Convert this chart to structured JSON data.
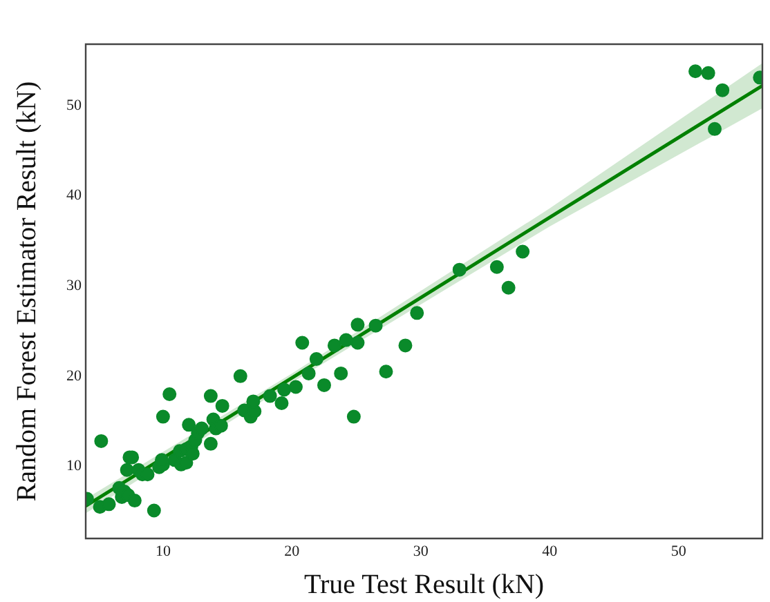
{
  "chart_data": {
    "type": "scatter",
    "xlabel": "True Test Result (kN)",
    "ylabel": "Random Forest Estimator Result (kN)",
    "xlim": [
      4,
      56.5
    ],
    "ylim": [
      2,
      56.8
    ],
    "xticks": [
      10,
      20,
      30,
      40,
      50
    ],
    "yticks": [
      10,
      20,
      30,
      40,
      50
    ],
    "grid": false,
    "legend": false,
    "marker": "circle",
    "series": [
      {
        "type": "scatter",
        "color": "#0a8a2a",
        "x": [
          4.1,
          5.2,
          5.1,
          5.8,
          6.6,
          6.8,
          7.0,
          7.3,
          7.8,
          7.4,
          7.6,
          7.2,
          8.1,
          8.4,
          8.8,
          9.3,
          9.7,
          10.0,
          9.9,
          10.0,
          10.5,
          10.9,
          11.3,
          11.4,
          11.8,
          11.8,
          12.2,
          12.3,
          12.0,
          12.5,
          12.7,
          13.0,
          13.7,
          13.7,
          13.9,
          14.1,
          14.6,
          14.5,
          16.0,
          16.3,
          16.8,
          17.1,
          17.0,
          18.3,
          19.2,
          19.4,
          20.3,
          20.8,
          21.3,
          21.9,
          22.5,
          23.3,
          23.8,
          24.2,
          24.8,
          25.1,
          25.1,
          26.5,
          27.3,
          28.8,
          29.7,
          33.0,
          35.9,
          36.8,
          37.9,
          51.3,
          52.3,
          53.4,
          52.8,
          56.3
        ],
        "values": [
          6.4,
          12.8,
          5.5,
          5.8,
          7.6,
          6.6,
          7.2,
          6.8,
          6.2,
          11.0,
          11.0,
          9.6,
          9.6,
          9.1,
          9.1,
          5.1,
          9.9,
          10.2,
          10.7,
          15.5,
          18.0,
          10.7,
          11.7,
          10.2,
          10.4,
          11.9,
          12.2,
          11.4,
          14.6,
          12.9,
          13.7,
          14.2,
          12.5,
          17.8,
          15.2,
          14.2,
          16.7,
          14.5,
          20.0,
          16.2,
          15.5,
          16.1,
          17.2,
          17.8,
          17.0,
          18.5,
          18.8,
          23.7,
          20.3,
          21.9,
          19.0,
          23.4,
          20.3,
          24.0,
          15.5,
          23.7,
          25.7,
          25.6,
          20.5,
          23.4,
          27.0,
          31.8,
          32.1,
          29.8,
          33.8,
          53.8,
          53.6,
          51.7,
          47.4,
          53.1
        ]
      },
      {
        "type": "line",
        "color": "#008000",
        "line_style": "solid",
        "marker": "none",
        "x": [
          4,
          20,
          40,
          56.5
        ],
        "values": [
          5.6,
          19.8,
          37.6,
          52.2
        ],
        "lower": [
          4.8,
          19.3,
          36.6,
          49.7
        ],
        "upper": [
          6.4,
          20.3,
          38.6,
          54.7
        ]
      }
    ]
  }
}
